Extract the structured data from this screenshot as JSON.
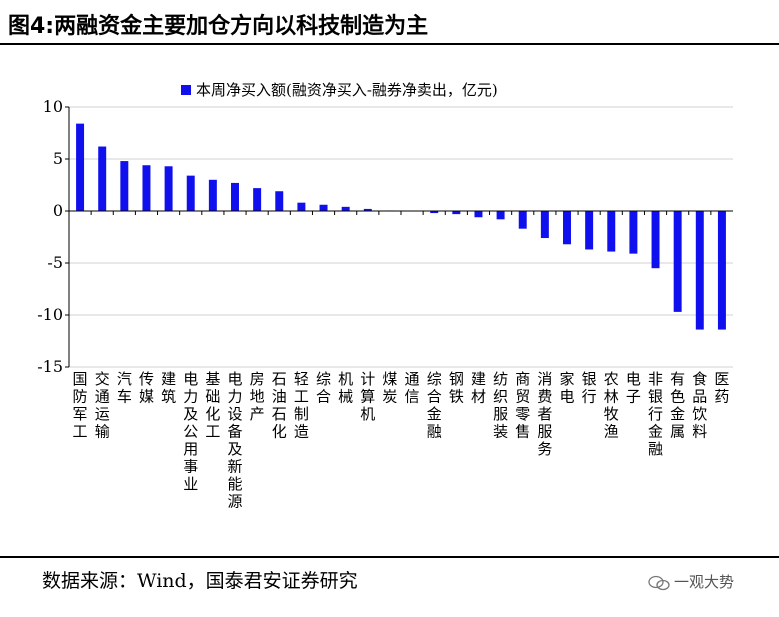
{
  "figure": {
    "title": "图4:两融资金主要加仓方向以科技制造为主",
    "source": "数据来源：Wind，国泰君安证券研究",
    "watermark": "一观大势"
  },
  "colors": {
    "bar": "#1010ee",
    "grid": "#d0d0d0",
    "axis": "#000000"
  },
  "chart_data": {
    "type": "bar",
    "title": "",
    "xlabel": "",
    "ylabel": "",
    "ylim": [
      -15,
      10
    ],
    "yticks": [
      10,
      5,
      0,
      -5,
      -10,
      -15
    ],
    "grid": true,
    "legend_position": "top-center",
    "series": [
      {
        "name": "本周净买入额(融资净买入-融券净卖出，亿元)",
        "values": [
          8.4,
          6.2,
          4.8,
          4.4,
          4.3,
          3.4,
          3.0,
          2.7,
          2.2,
          1.9,
          0.8,
          0.6,
          0.4,
          0.2,
          0.05,
          0.0,
          -0.2,
          -0.3,
          -0.6,
          -0.8,
          -1.7,
          -2.6,
          -3.2,
          -3.7,
          -3.9,
          -4.1,
          -5.5,
          -9.7,
          -11.4,
          -11.4
        ]
      }
    ],
    "categories": [
      "国防军工",
      "交通运输",
      "汽车",
      "传媒",
      "建筑",
      "电力及公用事业",
      "基础化工",
      "电力设备及新能源",
      "房地产",
      "石油石化",
      "轻工制造",
      "综合",
      "机械",
      "计算机",
      "煤炭",
      "通信",
      "综合金融",
      "钢铁",
      "建材",
      "纺织服装",
      "商贸零售",
      "消费者服务",
      "家电",
      "银行",
      "农林牧渔",
      "电子",
      "非银行金融",
      "有色金属",
      "食品饮料",
      "医药"
    ]
  }
}
